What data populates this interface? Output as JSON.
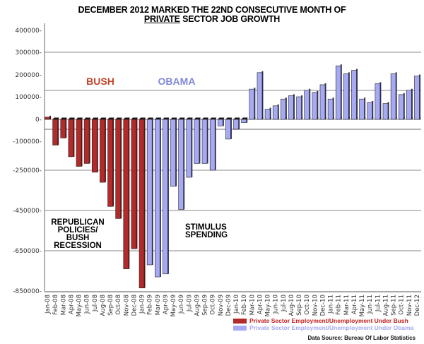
{
  "chart_data": {
    "type": "bar",
    "title_line1": "DECEMBER 2012 MARKED THE 22ND CONSECUTIVE MONTH OF",
    "title_line2_underlined": "PRIVATE",
    "title_line2_rest": " SECTOR JOB GROWTH",
    "xlabel": "",
    "ylabel": "",
    "y_tick_labels": [
      "400000",
      "300000",
      "200000",
      "100000",
      "0",
      "-100000",
      "-250000",
      "-450000",
      "-650000",
      "-850000"
    ],
    "ylim": [
      -850000,
      400000
    ],
    "categories": [
      "Jan-08",
      "Feb-08",
      "Mar-08",
      "Apr-08",
      "May-08",
      "Jun-08",
      "Jul-08",
      "Aug-08",
      "Sep-08",
      "Oct-08",
      "Nov-08",
      "Dec-08",
      "Jan-09",
      "Feb-09",
      "Mar-09",
      "Apr-09",
      "May-09",
      "Jun-09",
      "Jul-09",
      "Aug-09",
      "Sep-09",
      "Oct-09",
      "Nov-09",
      "Dec-09",
      "Jan-10",
      "Feb-10",
      "Mar-10",
      "Apr-10",
      "May-10",
      "Jun-10",
      "Jul-10",
      "Aug-10",
      "Sep-10",
      "Oct-10",
      "Nov-10",
      "Dec-10",
      "Jan-11",
      "Feb-11",
      "Mar-11",
      "Apr-11",
      "May-11",
      "Jun-11",
      "Jul-11",
      "Aug-11",
      "Sep-11",
      "Oct-11",
      "Nov-11",
      "Dec-12"
    ],
    "series": [
      {
        "name": "Private Sector Employment/Unemployment Under Bush",
        "color": "#b22a2a",
        "values": [
          10000,
          -120000,
          -85000,
          -180000,
          -230000,
          -215000,
          -260000,
          -310000,
          -430000,
          -490000,
          -740000,
          -640000,
          -835000,
          null,
          null,
          null,
          null,
          null,
          null,
          null,
          null,
          null,
          null,
          null,
          null,
          null,
          null,
          null,
          null,
          null,
          null,
          null,
          null,
          null,
          null,
          null,
          null,
          null,
          null,
          null,
          null,
          null,
          null,
          null,
          null,
          null,
          null,
          null
        ]
      },
      {
        "name": "Private Sector Employment/Unemployment Under Obama",
        "color": "#a7aaf2",
        "values": [
          null,
          null,
          null,
          null,
          null,
          null,
          null,
          null,
          null,
          null,
          null,
          null,
          null,
          -720000,
          -780000,
          -765000,
          -330000,
          -445000,
          -285000,
          -215000,
          -215000,
          -250000,
          -30000,
          -90000,
          -45000,
          -15000,
          135000,
          210000,
          45000,
          60000,
          90000,
          105000,
          100000,
          130000,
          120000,
          155000,
          90000,
          240000,
          205000,
          220000,
          90000,
          75000,
          160000,
          70000,
          205000,
          110000,
          130000,
          195000
        ]
      }
    ],
    "annotations": {
      "bush": "BUSH",
      "obama": "OBAMA",
      "recession": [
        "REPUBLICAN",
        "POLICIES/",
        "BUSH",
        "RECESSION"
      ],
      "stimulus": [
        "STIMULUS",
        "SPENDING"
      ]
    },
    "colors": {
      "bush_label": "#c0452a",
      "obama_label": "#8088d8",
      "bush_legend_text": "#c0201e",
      "obama_legend_text": "#a7aaf2"
    },
    "legend": [
      "Private Sector Employment/Unemployment Under Bush",
      "Private Sector Employment/Unemployment Under Obama"
    ],
    "legend_position": "bottom-right",
    "grid": true,
    "source": "Data Source: Bureau Of Labor Statistics"
  }
}
